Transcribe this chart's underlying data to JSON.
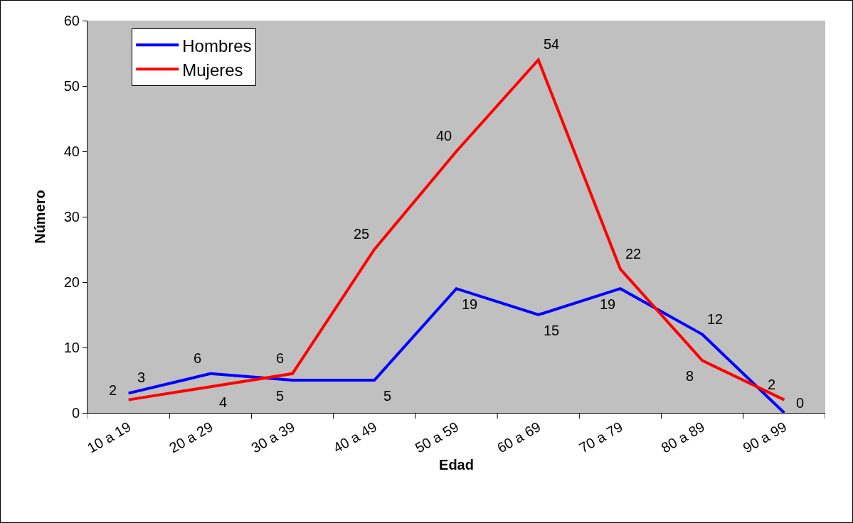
{
  "chart_data": {
    "type": "line",
    "xlabel": "Edad",
    "ylabel": "Número",
    "categories": [
      "10 a 19",
      "20 a 29",
      "30 a 39",
      "40 a 49",
      "50 a 59",
      "60 a 69",
      "70 a 79",
      "80 a 89",
      "90 a 99"
    ],
    "series": [
      {
        "name": "Hombres",
        "color": "#0000ff",
        "values": [
          3,
          6,
          5,
          5,
          19,
          15,
          19,
          12,
          0
        ]
      },
      {
        "name": "Mujeres",
        "color": "#ff0000",
        "values": [
          2,
          4,
          6,
          25,
          40,
          54,
          22,
          8,
          2
        ]
      }
    ],
    "ylim": [
      0,
      60
    ],
    "yticks": [
      0,
      10,
      20,
      30,
      40,
      50,
      60
    ],
    "grid": false,
    "legend": "top left",
    "marker": "none",
    "line_style": "solid",
    "data_labels": true
  }
}
